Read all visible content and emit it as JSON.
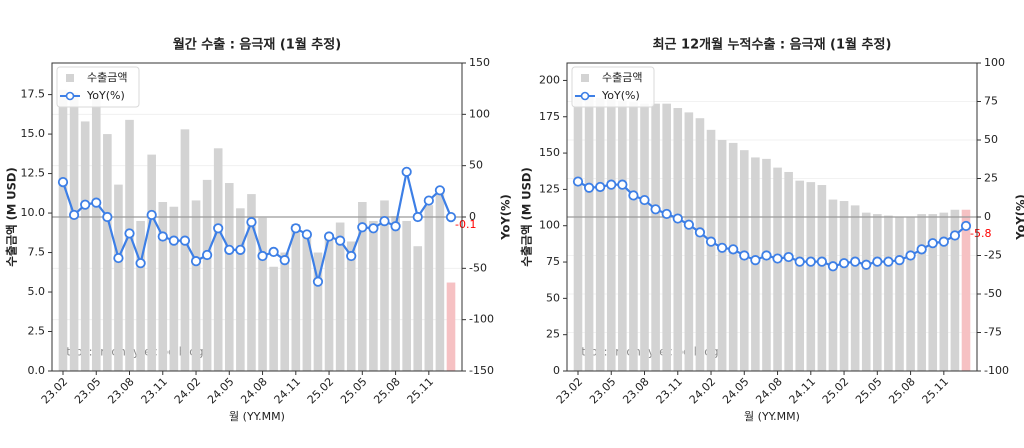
{
  "chart_data": [
    {
      "type": "bar_line",
      "title": "월간 수출 : 음극재 (1월 추정)",
      "xlabel": "월 (YY.MM)",
      "ylabel": "수출금액 (M USD)",
      "y2label": "YoY(%)",
      "watermark": "https://moneyrecipe.blog",
      "categories": [
        "23.02",
        null,
        null,
        "23.05",
        null,
        null,
        "23.08",
        null,
        null,
        "23.11",
        null,
        null,
        "24.02",
        null,
        null,
        "24.05",
        null,
        null,
        "24.08",
        null,
        null,
        "24.11",
        null,
        null,
        "25.02",
        null,
        null,
        "25.05",
        null,
        null,
        "25.08",
        null,
        null,
        "25.11",
        null,
        null
      ],
      "series": [
        {
          "name": "수출금액",
          "type": "bar",
          "axis": "y",
          "color": "#d3d3d3",
          "colors": [
            "#d3d3d3",
            "#d3d3d3",
            "#d3d3d3",
            "#d3d3d3",
            "#d3d3d3",
            "#d3d3d3",
            "#d3d3d3",
            "#d3d3d3",
            "#d3d3d3",
            "#d3d3d3",
            "#d3d3d3",
            "#d3d3d3",
            "#d3d3d3",
            "#d3d3d3",
            "#d3d3d3",
            "#d3d3d3",
            "#d3d3d3",
            "#d3d3d3",
            "#d3d3d3",
            "#d3d3d3",
            "#d3d3d3",
            "#d3d3d3",
            "#d3d3d3",
            "#d3d3d3",
            "#d3d3d3",
            "#d3d3d3",
            "#d3d3d3",
            "#d3d3d3",
            "#d3d3d3",
            "#d3d3d3",
            "#d3d3d3",
            "#d3d3d3",
            "#d3d3d3",
            "#d3d3d3",
            "#d3d3d3",
            "#f6c1c3"
          ],
          "values": [
            17.8,
            17.6,
            15.8,
            17.4,
            15.0,
            11.8,
            15.9,
            9.5,
            13.7,
            10.7,
            10.4,
            15.3,
            10.8,
            12.1,
            14.1,
            11.9,
            10.3,
            11.2,
            9.7,
            6.6,
            7.5,
            9.3,
            8.5,
            7.5,
            8.5,
            9.4,
            8.2,
            10.7,
            9.5,
            10.8,
            9.8,
            9.5,
            7.9,
            10.5,
            11.3,
            5.6
          ]
        },
        {
          "name": "YoY(%)",
          "type": "line",
          "axis": "y2",
          "color": "#3d7fe6",
          "last_label_color": "#ff0000",
          "values": [
            34,
            2,
            12,
            14,
            0,
            -40,
            -16,
            -45,
            2,
            -19,
            -23,
            -23,
            -43,
            -37,
            -11,
            -32,
            -32,
            -5,
            -38,
            -34,
            -42,
            -11,
            -17,
            -63,
            -19,
            -23,
            -38,
            -10,
            -11,
            -4,
            -9,
            44,
            0,
            16,
            26,
            -0.1
          ]
        }
      ],
      "ylim": [
        0,
        19.5
      ],
      "yticks": [
        {
          "value": 0,
          "label": "0.0"
        },
        {
          "value": 2.5,
          "label": "2.5"
        },
        {
          "value": 5,
          "label": "5.0"
        },
        {
          "value": 7.5,
          "label": "7.5"
        },
        {
          "value": 10,
          "label": "10.0"
        },
        {
          "value": 12.5,
          "label": "12.5"
        },
        {
          "value": 15,
          "label": "15.0"
        },
        {
          "value": 17.5,
          "label": "17.5"
        }
      ],
      "y2lim": [
        -150,
        150
      ],
      "y2ticks": [
        -150,
        -100,
        -50,
        0,
        50,
        100,
        150
      ],
      "grid": true,
      "refline": {
        "axis": "y2",
        "value": 0,
        "color": "#9a9a9a"
      },
      "legend": "upper left"
    },
    {
      "type": "bar_line",
      "title": "최근 12개월 누적수출 : 음극재 (1월 추정)",
      "xlabel": "월 (YY.MM)",
      "ylabel": "수출금액 (M USD)",
      "y2label": "YoY(%)",
      "watermark": "https://moneyrecipe.blog",
      "categories": [
        "23.02",
        null,
        null,
        "23.05",
        null,
        null,
        "23.08",
        null,
        null,
        "23.11",
        null,
        null,
        "24.02",
        null,
        null,
        "24.05",
        null,
        null,
        "24.08",
        null,
        null,
        "24.11",
        null,
        null,
        "25.02",
        null,
        null,
        "25.05",
        null,
        null,
        "25.08",
        null,
        null,
        "25.11",
        null,
        null
      ],
      "series": [
        {
          "name": "수출금액",
          "type": "bar",
          "axis": "y",
          "color": "#d3d3d3",
          "colors": [
            "#d3d3d3",
            "#d3d3d3",
            "#d3d3d3",
            "#d3d3d3",
            "#d3d3d3",
            "#d3d3d3",
            "#d3d3d3",
            "#d3d3d3",
            "#d3d3d3",
            "#d3d3d3",
            "#d3d3d3",
            "#d3d3d3",
            "#d3d3d3",
            "#d3d3d3",
            "#d3d3d3",
            "#d3d3d3",
            "#d3d3d3",
            "#d3d3d3",
            "#d3d3d3",
            "#d3d3d3",
            "#d3d3d3",
            "#d3d3d3",
            "#d3d3d3",
            "#d3d3d3",
            "#d3d3d3",
            "#d3d3d3",
            "#d3d3d3",
            "#d3d3d3",
            "#d3d3d3",
            "#d3d3d3",
            "#d3d3d3",
            "#d3d3d3",
            "#d3d3d3",
            "#d3d3d3",
            "#d3d3d3",
            "#f6c1c3"
          ],
          "values": [
            190,
            189,
            188,
            187,
            186,
            185,
            184,
            184,
            184,
            181,
            178,
            174,
            166,
            159,
            157,
            152,
            147,
            146,
            140,
            137,
            131,
            130,
            128,
            118,
            117,
            114,
            109,
            108,
            107,
            106,
            106,
            108,
            108,
            109,
            111,
            111
          ]
        },
        {
          "name": "YoY(%)",
          "type": "line",
          "axis": "y2",
          "color": "#3d7fe6",
          "last_label_color": "#ff0000",
          "values": [
            23,
            19,
            19.5,
            21,
            21,
            14,
            11,
            5,
            2,
            -1,
            -5,
            -10,
            -16,
            -20,
            -21,
            -25,
            -28,
            -25,
            -27,
            -26,
            -29,
            -29,
            -29,
            -32,
            -30,
            -29,
            -31,
            -29,
            -29,
            -28,
            -25,
            -21,
            -17,
            -16,
            -12,
            -5.8
          ]
        }
      ],
      "ylim": [
        0,
        212
      ],
      "yticks": [
        0,
        25,
        50,
        75,
        100,
        125,
        150,
        175,
        200
      ],
      "y2lim": [
        -100,
        100
      ],
      "y2ticks": [
        -100,
        -75,
        -50,
        -25,
        0,
        25,
        50,
        75,
        100
      ],
      "grid": true,
      "refline": {
        "axis": "y2",
        "value": 0,
        "color": "#9a9a9a"
      },
      "legend": "upper left"
    }
  ]
}
